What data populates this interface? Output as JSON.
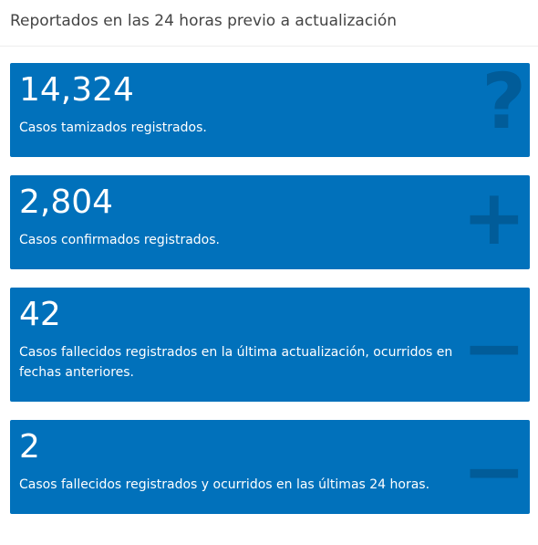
{
  "header": {
    "title": "Reportados en las 24 horas previo a actualización"
  },
  "cards": [
    {
      "value": "14,324",
      "label": "Casos tamizados registrados.",
      "icon": "?"
    },
    {
      "value": "2,804",
      "label": "Casos confirmados registrados.",
      "icon": "+"
    },
    {
      "value": "42",
      "label": "Casos fallecidos registrados en la última actualización, ocurridos en fechas anteriores.",
      "icon": "−"
    },
    {
      "value": "2",
      "label": "Casos fallecidos registrados y ocurridos en las últimas 24 horas.",
      "icon": "−"
    }
  ]
}
